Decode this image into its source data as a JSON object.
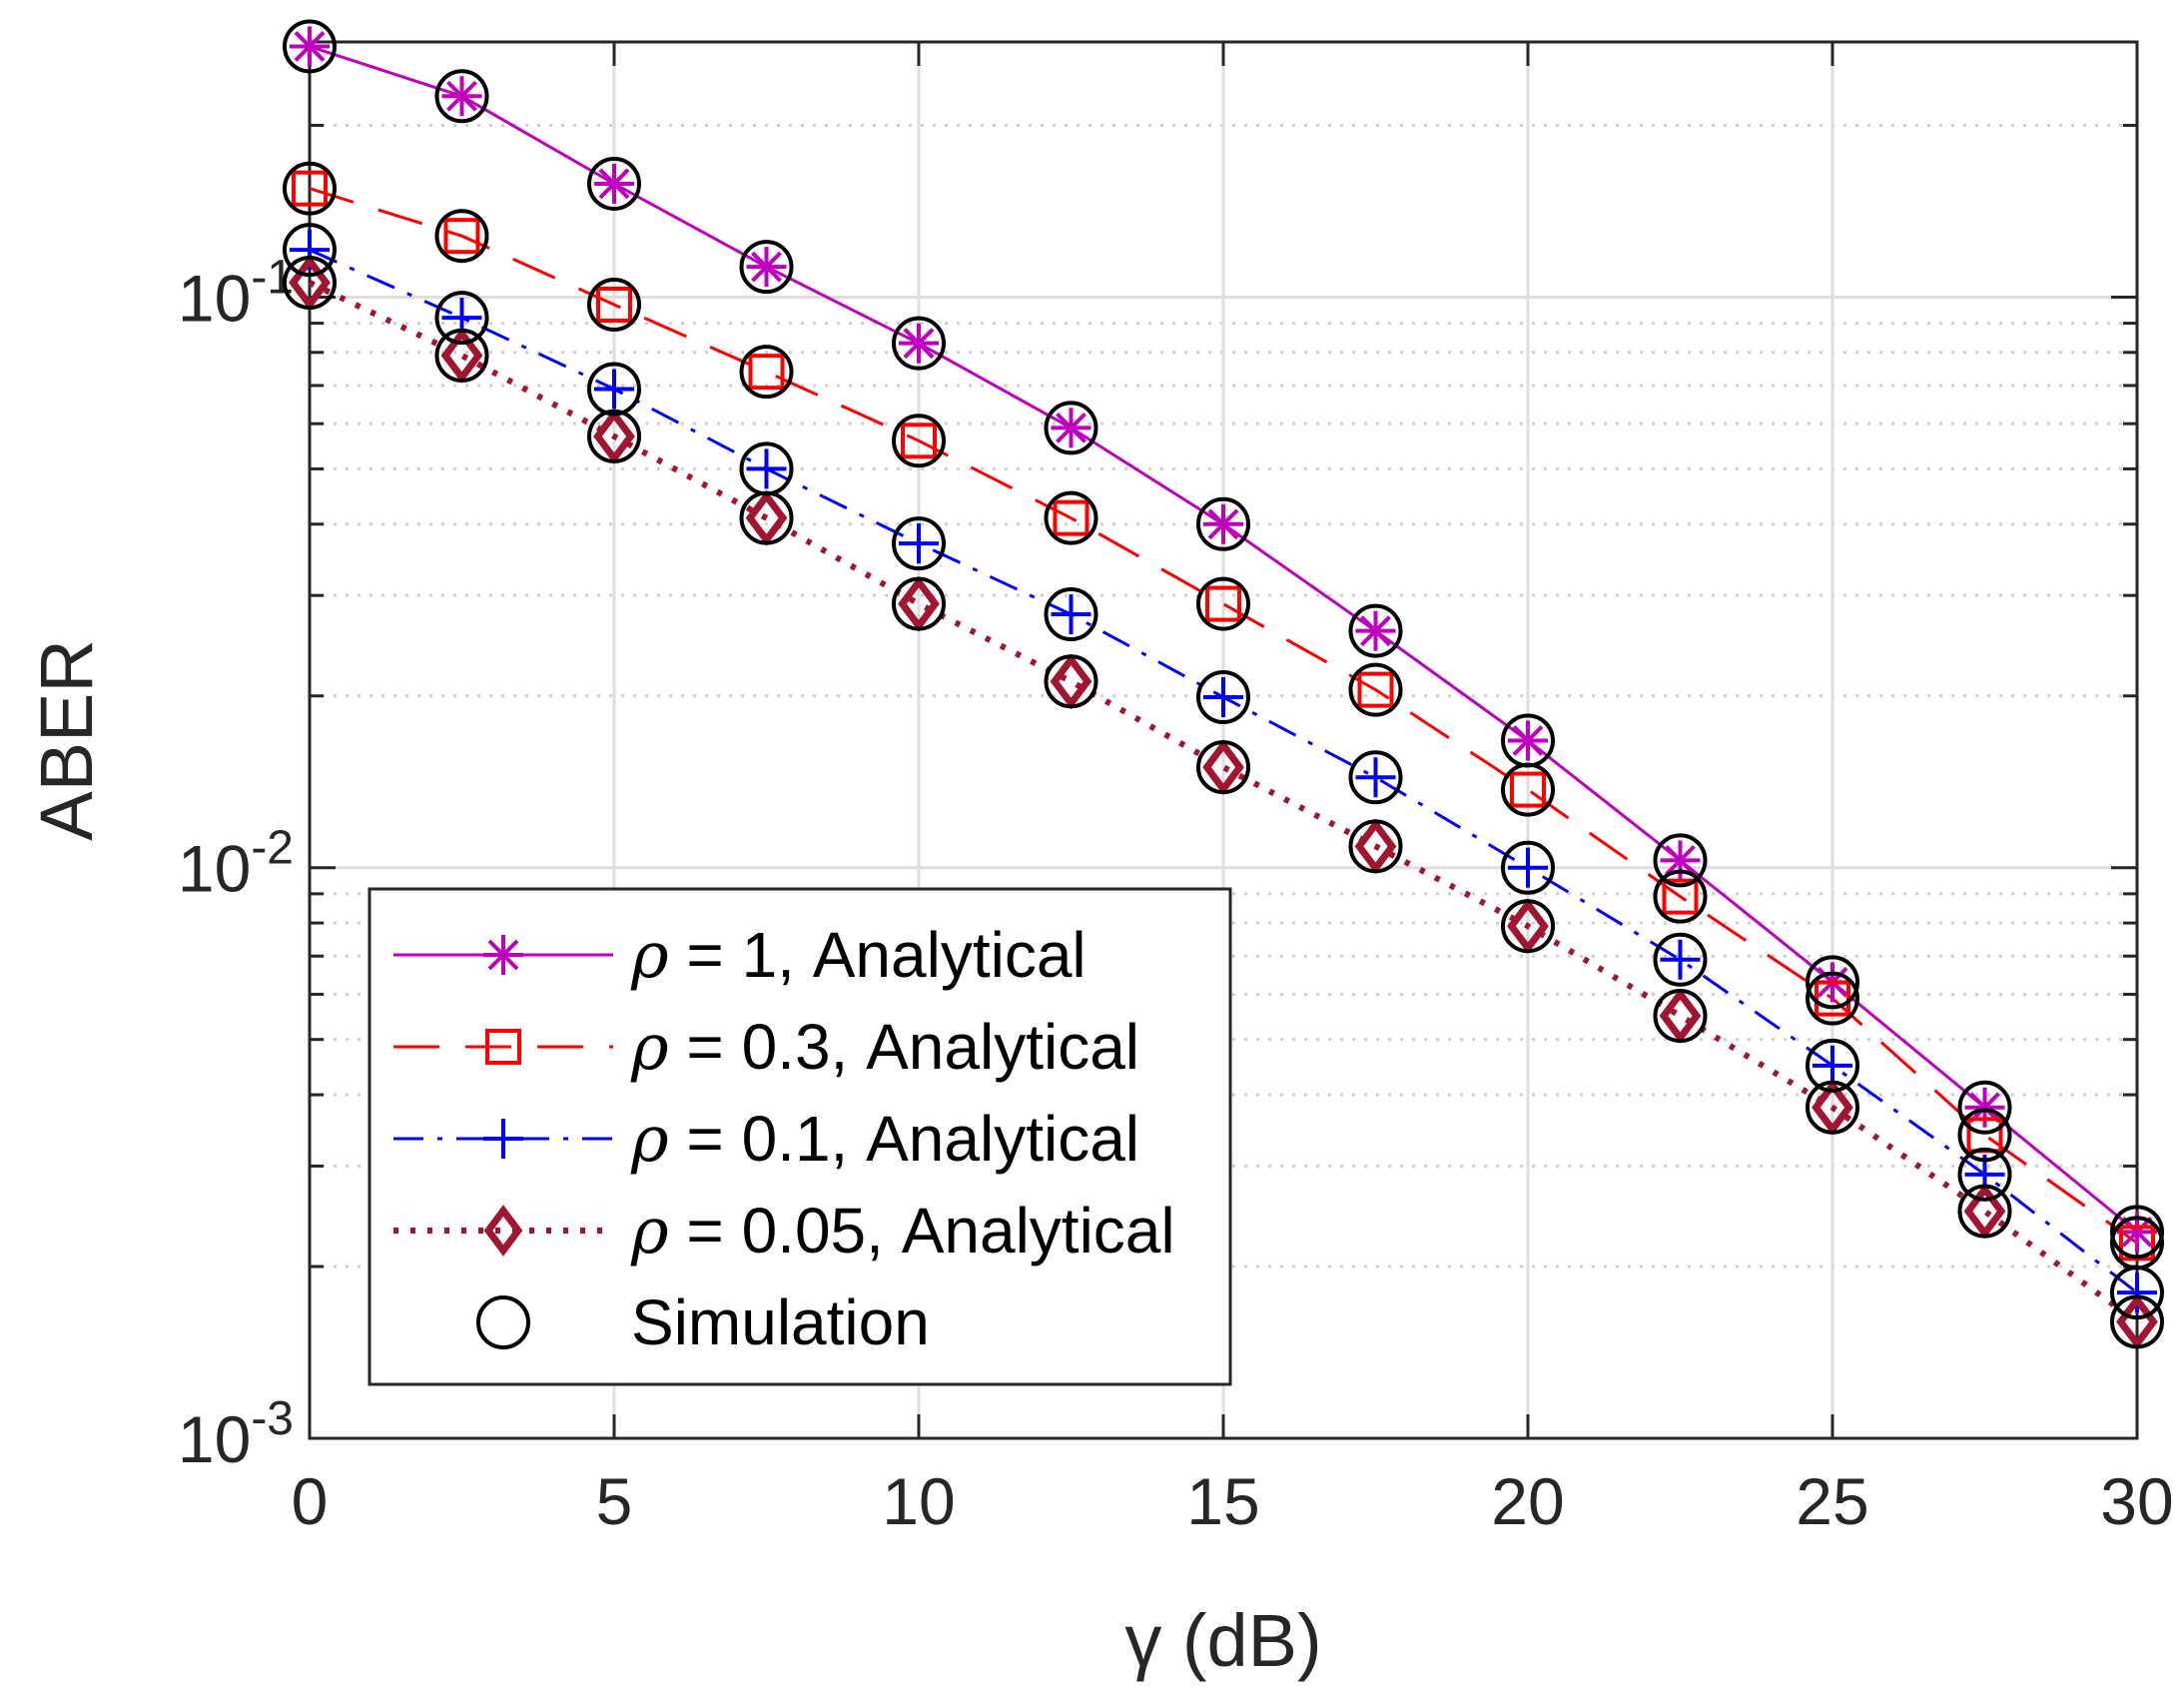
{
  "chart_data": {
    "type": "line",
    "title": "",
    "xlabel": "γ (dB)",
    "ylabel": "ABER",
    "xlim": [
      0,
      30
    ],
    "ylim": [
      0.001,
      0.28
    ],
    "yscale": "log",
    "grid": true,
    "x_ticks": [
      0,
      5,
      10,
      15,
      20,
      25,
      30
    ],
    "x_tick_labels": [
      "0",
      "5",
      "10",
      "15",
      "20",
      "25",
      "30"
    ],
    "y_ticks": [
      {
        "value": 0.1,
        "base": "10",
        "exp": "-1"
      },
      {
        "value": 0.01,
        "base": "10",
        "exp": "-2"
      },
      {
        "value": 0.001,
        "base": "10",
        "exp": "-3"
      }
    ],
    "x": [
      0,
      2.5,
      5,
      7.5,
      10,
      12.5,
      15,
      17.5,
      20,
      22.5,
      25,
      27.5,
      30
    ],
    "series": [
      {
        "name": "ρ = 1, Analytical",
        "color": "#bf00bf",
        "dash": "solid",
        "marker": "asterisk",
        "values": [
          0.275,
          0.225,
          0.158,
          0.113,
          0.083,
          0.059,
          0.04,
          0.026,
          0.0167,
          0.0103,
          0.0063,
          0.0038,
          0.0023
        ]
      },
      {
        "name": "ρ = 0.3, Analytical",
        "color": "#ff0000",
        "dash": "dashed",
        "marker": "square",
        "values": [
          0.155,
          0.128,
          0.097,
          0.074,
          0.056,
          0.041,
          0.029,
          0.0205,
          0.0137,
          0.0089,
          0.0059,
          0.0034,
          0.0022
        ]
      },
      {
        "name": "ρ = 0.1, Analytical",
        "color": "#0000ff",
        "dash": "dashdot",
        "marker": "plus",
        "values": [
          0.121,
          0.092,
          0.069,
          0.05,
          0.037,
          0.0278,
          0.0199,
          0.0144,
          0.01,
          0.0069,
          0.0045,
          0.0029,
          0.0018
        ]
      },
      {
        "name": "ρ = 0.05, Analytical",
        "color": "#a2142f",
        "dash": "dotted",
        "marker": "diamond",
        "values": [
          0.106,
          0.079,
          0.057,
          0.041,
          0.029,
          0.0212,
          0.015,
          0.0109,
          0.0079,
          0.0055,
          0.0038,
          0.0025,
          0.0016
        ]
      }
    ],
    "simulation": {
      "name": "Simulation",
      "color": "#000000",
      "marker": "circle"
    },
    "legend_location": "bottom-left"
  }
}
